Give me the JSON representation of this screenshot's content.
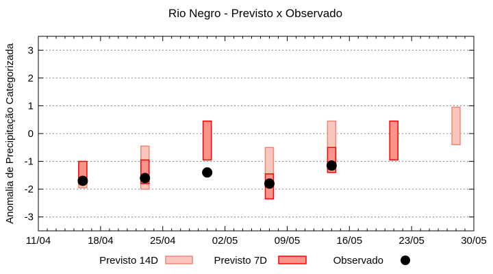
{
  "chart_data": {
    "type": "bar",
    "title": "Rio Negro - Previsto x Observado",
    "xlabel": "",
    "ylabel": "Anomalia de Precipitação Categorizada",
    "ylim": [
      -3.5,
      3.5
    ],
    "x_range_days": [
      0,
      49
    ],
    "grid": "horizontal dotted gridlines at integer y values",
    "legend_position": "bottom-center, outside plot",
    "xtick_labels": [
      "11/04",
      "18/04",
      "25/04",
      "02/05",
      "09/05",
      "16/05",
      "23/05",
      "30/05"
    ],
    "xtick_major_days": [
      0,
      7,
      14,
      21,
      28,
      35,
      42,
      49
    ],
    "ytick_values": [
      -3,
      -2,
      -1,
      0,
      1,
      2,
      3
    ],
    "colors": {
      "previsto_14d_fill": "#f9c6bd",
      "previsto_14d_border": "#f08776",
      "previsto_7d_fill": "#fa948b",
      "previsto_7d_border": "#ff0000",
      "observado": "#000000",
      "grid": "#808080",
      "axis": "#000000",
      "background": "#ffffff"
    },
    "legend": {
      "previsto_14d_label": "Previsto 14D",
      "previsto_7d_label": "Previsto 7D",
      "observado_label": "Observado"
    },
    "series": [
      {
        "date": "16/04",
        "day": 5,
        "previsto_14d": [
          -1.95,
          -1.0
        ],
        "previsto_7d": [
          -1.8,
          -1.0
        ],
        "observado": -1.7
      },
      {
        "date": "23/04",
        "day": 12,
        "previsto_14d": [
          -2.0,
          -0.45
        ],
        "previsto_7d": [
          -1.8,
          -0.95
        ],
        "observado": -1.6
      },
      {
        "date": "30/04",
        "day": 19,
        "previsto_14d": null,
        "previsto_7d": [
          -0.95,
          0.45
        ],
        "observado": -1.4
      },
      {
        "date": "07/05",
        "day": 26,
        "previsto_14d": [
          -1.45,
          -0.5
        ],
        "previsto_7d": [
          -2.35,
          -1.45
        ],
        "observado": -1.8
      },
      {
        "date": "14/05",
        "day": 33,
        "previsto_14d": [
          -0.5,
          0.45
        ],
        "previsto_7d": [
          -1.4,
          -0.5
        ],
        "observado": -1.15
      },
      {
        "date": "21/05",
        "day": 40,
        "previsto_14d": null,
        "previsto_7d": [
          -0.95,
          0.45
        ],
        "observado": null
      },
      {
        "date": "28/05",
        "day": 47,
        "previsto_14d": [
          -0.4,
          0.95
        ],
        "previsto_7d": null,
        "observado": null
      }
    ]
  }
}
